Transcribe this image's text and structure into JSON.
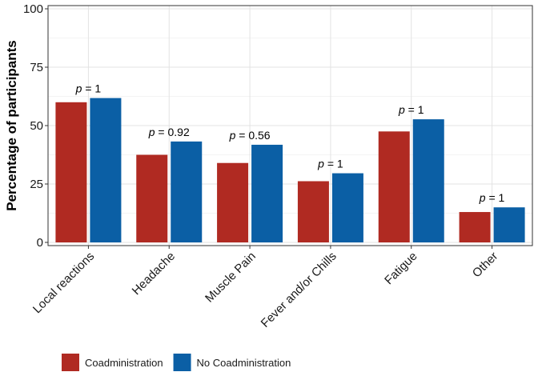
{
  "chart_data": {
    "type": "bar",
    "categories": [
      "Local reactions",
      "Headache",
      "Muscle Pain",
      "Fever and/or Chills",
      "Fatigue",
      "Other"
    ],
    "series": [
      {
        "name": "Coadministration",
        "color": "#b02a22",
        "values": [
          60,
          37.5,
          34,
          26.2,
          47.5,
          13
        ]
      },
      {
        "name": "No Coadministration",
        "color": "#0b5fa5",
        "values": [
          61.8,
          43.2,
          41.8,
          29.6,
          52.7,
          15
        ]
      }
    ],
    "pvalues": [
      "p = 1",
      "p = 0.92",
      "p = 0.56",
      "p = 1",
      "p = 1",
      "p = 1"
    ],
    "xlabel": "",
    "ylabel": "Percentage of participants",
    "ylim": [
      0,
      100
    ],
    "yticks": [
      0,
      25,
      50,
      75,
      100
    ],
    "grid": true,
    "legend_position": "bottom-left"
  }
}
